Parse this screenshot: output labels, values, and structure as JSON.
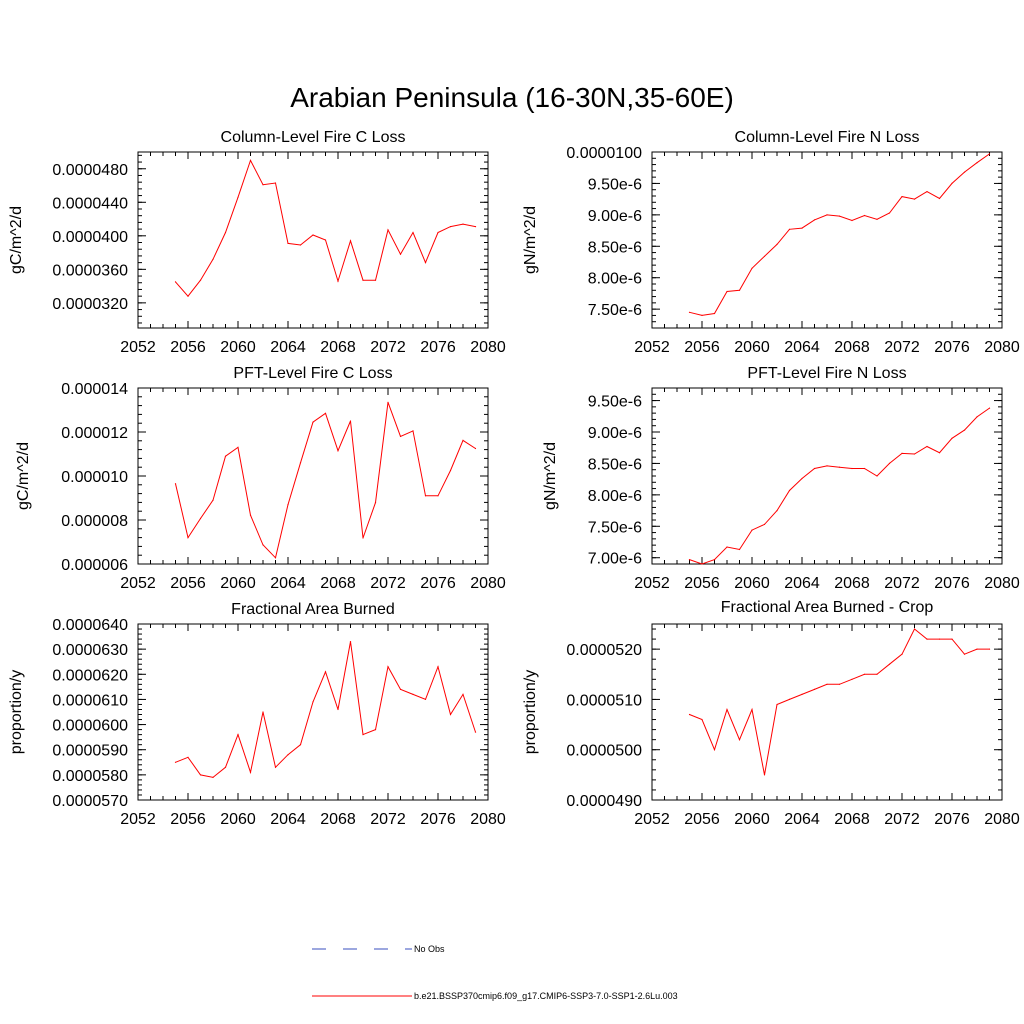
{
  "figure_title": "Arabian Peninsula (16-30N,35-60E)",
  "colors": {
    "model": "#ff0000",
    "obs": "#3a4fbf",
    "axis": "#000000"
  },
  "legend": [
    {
      "label": "No Obs",
      "style": "dashed",
      "color": "#3a4fbf"
    },
    {
      "label": "b.e21.BSSP370cmip6.f09_g17.CMIP6-SSP3-7.0-SSP1-2.6Lu.003",
      "style": "solid",
      "color": "#ff0000"
    }
  ],
  "chart_data": [
    {
      "type": "line",
      "title": "Column-Level Fire C Loss",
      "ylabel": "gC/m^2/d",
      "xlim": [
        2052,
        2080
      ],
      "xticks": [
        "2052",
        "2056",
        "2060",
        "2064",
        "2068",
        "2072",
        "2076",
        "2080"
      ],
      "ylim": [
        2.9e-05,
        5e-05
      ],
      "yticks": [
        {
          "value": 3.2e-05,
          "label": "0.0000320"
        },
        {
          "value": 3.6e-05,
          "label": "0.0000360"
        },
        {
          "value": 4e-05,
          "label": "0.0000400"
        },
        {
          "value": 4.4e-05,
          "label": "0.0000440"
        },
        {
          "value": 4.8e-05,
          "label": "0.0000480"
        }
      ],
      "x": [
        2055,
        2056,
        2057,
        2058,
        2059,
        2060,
        2061,
        2062,
        2063,
        2064,
        2065,
        2066,
        2067,
        2068,
        2069,
        2070,
        2071,
        2072,
        2073,
        2074,
        2075,
        2076,
        2077,
        2078,
        2079
      ],
      "series": [
        {
          "values": [
            3.45e-05,
            3.28e-05,
            3.47e-05,
            3.72e-05,
            4.04e-05,
            4.46e-05,
            4.9e-05,
            4.61e-05,
            4.63e-05,
            3.91e-05,
            3.89e-05,
            4.01e-05,
            3.95e-05,
            3.46e-05,
            3.94e-05,
            3.47e-05,
            3.47e-05,
            4.07e-05,
            3.78e-05,
            4.04e-05,
            3.68e-05,
            4.04e-05,
            4.11e-05,
            4.14e-05,
            4.11e-05
          ]
        }
      ]
    },
    {
      "type": "line",
      "title": "Column-Level Fire N Loss",
      "ylabel": "gN/m^2/d",
      "xlim": [
        2052,
        2080
      ],
      "xticks": [
        "2052",
        "2056",
        "2060",
        "2064",
        "2068",
        "2072",
        "2076",
        "2080"
      ],
      "ylim": [
        7.2e-06,
        1e-05
      ],
      "yticks": [
        {
          "value": 7.5e-06,
          "label": "7.50e-6"
        },
        {
          "value": 8e-06,
          "label": "8.00e-6"
        },
        {
          "value": 8.5e-06,
          "label": "8.50e-6"
        },
        {
          "value": 9e-06,
          "label": "9.00e-6"
        },
        {
          "value": 9.5e-06,
          "label": "9.50e-6"
        },
        {
          "value": 1e-05,
          "label": "0.0000100"
        }
      ],
      "x": [
        2055,
        2056,
        2057,
        2058,
        2059,
        2060,
        2061,
        2062,
        2063,
        2064,
        2065,
        2066,
        2067,
        2068,
        2069,
        2070,
        2071,
        2072,
        2073,
        2074,
        2075,
        2076,
        2077,
        2078,
        2079
      ],
      "series": [
        {
          "values": [
            7.45e-06,
            7.4e-06,
            7.43e-06,
            7.78e-06,
            7.8e-06,
            8.15e-06,
            8.34e-06,
            8.53e-06,
            8.77e-06,
            8.79e-06,
            8.92e-06,
            9e-06,
            8.98e-06,
            8.91e-06,
            8.99e-06,
            8.93e-06,
            9.03e-06,
            9.29e-06,
            9.25e-06,
            9.37e-06,
            9.26e-06,
            9.5e-06,
            9.68e-06,
            9.83e-06,
            9.97e-06
          ]
        }
      ]
    },
    {
      "type": "line",
      "title": "PFT-Level Fire C Loss",
      "ylabel": "gC/m^2/d",
      "xlim": [
        2052,
        2080
      ],
      "xticks": [
        "2052",
        "2056",
        "2060",
        "2064",
        "2068",
        "2072",
        "2076",
        "2080"
      ],
      "ylim": [
        6e-06,
        1.4e-05
      ],
      "yticks": [
        {
          "value": 6e-06,
          "label": "0.000006"
        },
        {
          "value": 8e-06,
          "label": "0.000008"
        },
        {
          "value": 1e-05,
          "label": "0.000010"
        },
        {
          "value": 1.2e-05,
          "label": "0.000012"
        },
        {
          "value": 1.4e-05,
          "label": "0.000014"
        }
      ],
      "x": [
        2055,
        2056,
        2057,
        2058,
        2059,
        2060,
        2061,
        2062,
        2063,
        2064,
        2065,
        2066,
        2067,
        2068,
        2069,
        2070,
        2071,
        2072,
        2073,
        2074,
        2075,
        2076,
        2077,
        2078,
        2079
      ],
      "series": [
        {
          "values": [
            9.65e-06,
            7.2e-06,
            8.07e-06,
            8.9e-06,
            1.09e-05,
            1.13e-05,
            8.22e-06,
            6.87e-06,
            6.28e-06,
            8.7e-06,
            1.06e-05,
            1.245e-05,
            1.285e-05,
            1.115e-05,
            1.25e-05,
            7.18e-06,
            8.79e-06,
            1.335e-05,
            1.18e-05,
            1.205e-05,
            9.1e-06,
            9.1e-06,
            1.025e-05,
            1.162e-05,
            1.125e-05
          ]
        }
      ]
    },
    {
      "type": "line",
      "title": "PFT-Level Fire N Loss",
      "ylabel": "gN/m^2/d",
      "xlim": [
        2052,
        2080
      ],
      "xticks": [
        "2052",
        "2056",
        "2060",
        "2064",
        "2068",
        "2072",
        "2076",
        "2080"
      ],
      "ylim": [
        6.9e-06,
        9.7e-06
      ],
      "yticks": [
        {
          "value": 7e-06,
          "label": "7.00e-6"
        },
        {
          "value": 7.5e-06,
          "label": "7.50e-6"
        },
        {
          "value": 8e-06,
          "label": "8.00e-6"
        },
        {
          "value": 8.5e-06,
          "label": "8.50e-6"
        },
        {
          "value": 9e-06,
          "label": "9.00e-6"
        },
        {
          "value": 9.5e-06,
          "label": "9.50e-6"
        }
      ],
      "x": [
        2055,
        2056,
        2057,
        2058,
        2059,
        2060,
        2061,
        2062,
        2063,
        2064,
        2065,
        2066,
        2067,
        2068,
        2069,
        2070,
        2071,
        2072,
        2073,
        2074,
        2075,
        2076,
        2077,
        2078,
        2079
      ],
      "series": [
        {
          "values": [
            6.97e-06,
            6.9e-06,
            6.97e-06,
            7.17e-06,
            7.13e-06,
            7.44e-06,
            7.53e-06,
            7.75e-06,
            8.07e-06,
            8.26e-06,
            8.42e-06,
            8.46e-06,
            8.44e-06,
            8.42e-06,
            8.42e-06,
            8.3e-06,
            8.5e-06,
            8.66e-06,
            8.65e-06,
            8.77e-06,
            8.67e-06,
            8.9e-06,
            9.03e-06,
            9.24e-06,
            9.38e-06
          ]
        }
      ]
    },
    {
      "type": "line",
      "title": "Fractional Area Burned",
      "ylabel": "proportion/y",
      "xlim": [
        2052,
        2080
      ],
      "xticks": [
        "2052",
        "2056",
        "2060",
        "2064",
        "2068",
        "2072",
        "2076",
        "2080"
      ],
      "ylim": [
        5.7e-05,
        6.4e-05
      ],
      "yticks": [
        {
          "value": 5.7e-05,
          "label": "0.0000570"
        },
        {
          "value": 5.8e-05,
          "label": "0.0000580"
        },
        {
          "value": 5.9e-05,
          "label": "0.0000590"
        },
        {
          "value": 6e-05,
          "label": "0.0000600"
        },
        {
          "value": 6.1e-05,
          "label": "0.0000610"
        },
        {
          "value": 6.2e-05,
          "label": "0.0000620"
        },
        {
          "value": 6.3e-05,
          "label": "0.0000630"
        },
        {
          "value": 6.4e-05,
          "label": "0.0000640"
        }
      ],
      "x": [
        2055,
        2056,
        2057,
        2058,
        2059,
        2060,
        2061,
        2062,
        2063,
        2064,
        2065,
        2066,
        2067,
        2068,
        2069,
        2070,
        2071,
        2072,
        2073,
        2074,
        2075,
        2076,
        2077,
        2078,
        2079
      ],
      "series": [
        {
          "values": [
            5.85e-05,
            5.87e-05,
            5.8e-05,
            5.79e-05,
            5.83e-05,
            5.96e-05,
            5.81e-05,
            6.05e-05,
            5.83e-05,
            5.88e-05,
            5.92e-05,
            6.09e-05,
            6.21e-05,
            6.06e-05,
            6.33e-05,
            5.96e-05,
            5.98e-05,
            6.23e-05,
            6.14e-05,
            6.12e-05,
            6.1e-05,
            6.23e-05,
            6.04e-05,
            6.12e-05,
            5.97e-05
          ]
        }
      ]
    },
    {
      "type": "line",
      "title": "Fractional Area Burned - Crop",
      "ylabel": "proportion/y",
      "xlim": [
        2052,
        2080
      ],
      "xticks": [
        "2052",
        "2056",
        "2060",
        "2064",
        "2068",
        "2072",
        "2076",
        "2080"
      ],
      "ylim": [
        4.9e-05,
        5.25e-05
      ],
      "yticks": [
        {
          "value": 4.9e-05,
          "label": "0.0000490"
        },
        {
          "value": 5e-05,
          "label": "0.0000500"
        },
        {
          "value": 5.1e-05,
          "label": "0.0000510"
        },
        {
          "value": 5.2e-05,
          "label": "0.0000520"
        }
      ],
      "x": [
        2055,
        2056,
        2057,
        2058,
        2059,
        2060,
        2061,
        2062,
        2063,
        2064,
        2065,
        2066,
        2067,
        2068,
        2069,
        2070,
        2071,
        2072,
        2073,
        2074,
        2075,
        2076,
        2077,
        2078,
        2079
      ],
      "series": [
        {
          "values": [
            5.07e-05,
            5.06e-05,
            5e-05,
            5.08e-05,
            5.02e-05,
            5.08e-05,
            4.95e-05,
            5.09e-05,
            5.1e-05,
            5.11e-05,
            5.12e-05,
            5.13e-05,
            5.13e-05,
            5.14e-05,
            5.15e-05,
            5.15e-05,
            5.17e-05,
            5.19e-05,
            5.24e-05,
            5.22e-05,
            5.22e-05,
            5.22e-05,
            5.19e-05,
            5.2e-05,
            5.2e-05
          ]
        }
      ]
    }
  ]
}
